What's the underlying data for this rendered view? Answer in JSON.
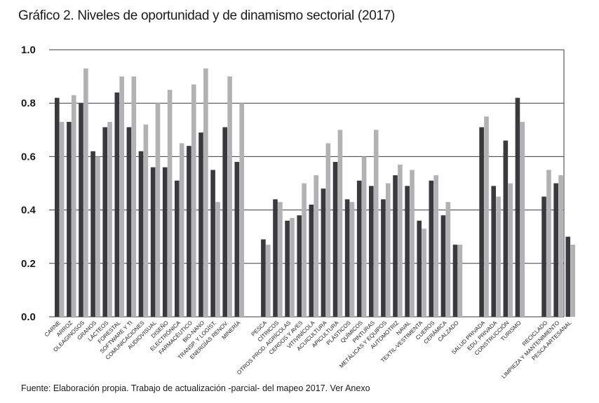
{
  "title": "Gráfico 2. Niveles de oportunidad y de dinamismo sectorial (2017)",
  "source": "Fuente: Elaboración propia. Trabajo de actualización -parcial- del mapeo 2017. Ver Anexo",
  "chart_data": {
    "type": "bar",
    "title": "Gráfico 2. Niveles de oportunidad y de dinamismo sectorial (2017)",
    "xlabel": "",
    "ylabel": "",
    "ylim": [
      0,
      1
    ],
    "yticks": [
      "0.0",
      "0.2",
      "0.4",
      "0.6",
      "0.8",
      "1.0"
    ],
    "grid": true,
    "legend": "none",
    "colors": {
      "series1": "#3a3a3c",
      "series2": "#b2b2b4",
      "grid": "#3a3a3a"
    },
    "groups": [
      {
        "categories": [
          "CARNE",
          "ARROZ",
          "OLEAGINOSOS",
          "GRANOS",
          "LÁCTEOS",
          "FORESTAL",
          "SOFTWARE Y TI",
          "COMUNICACIONES",
          "AUDIOVISUAL",
          "DISEÑO",
          "ELECTRÓNICA",
          "FARMACÉUTICO",
          "BIO-NANO",
          "TRANSP. Y LOGÍST.",
          "ENERGÍAS RENOV.",
          "MINERÍA"
        ],
        "series": [
          {
            "values": [
              0.82,
              0.73,
              0.8,
              0.62,
              0.71,
              0.84,
              0.71,
              0.62,
              0.56,
              0.56,
              0.51,
              0.64,
              0.69,
              0.55,
              0.71,
              0.58
            ]
          },
          {
            "values": [
              0.73,
              0.83,
              0.93,
              0.6,
              0.73,
              0.9,
              0.9,
              0.72,
              0.8,
              0.85,
              0.65,
              0.87,
              0.93,
              0.43,
              0.9,
              0.8
            ]
          }
        ]
      },
      {
        "categories": [
          "PESCA",
          "CÍTRICOS",
          "OTROS PROD. AGRÍCOLAS",
          "CERDOS Y AVES",
          "VITIVINÍCOLA",
          "ACUICULTURA",
          "APICULTURA",
          "PLÁSTICOS",
          "QUÍMICOS",
          "PINTURAS",
          "METÁLICAS Y EQUIPOS",
          "AUTOMOTRIZ",
          "NAVAL",
          "TEXTIL-VESTIMENTA",
          "CUEROS",
          "CERÁMICA",
          "CALZADO"
        ],
        "series": [
          {
            "values": [
              0.29,
              0.44,
              0.36,
              0.38,
              0.42,
              0.48,
              0.58,
              0.44,
              0.51,
              0.49,
              0.44,
              0.53,
              0.49,
              0.36,
              0.51,
              0.38,
              0.27
            ]
          },
          {
            "values": [
              0.27,
              0.43,
              0.37,
              0.5,
              0.53,
              0.65,
              0.7,
              0.43,
              0.6,
              0.7,
              0.5,
              0.57,
              0.55,
              0.33,
              0.53,
              0.43,
              0.27
            ]
          }
        ]
      },
      {
        "categories": [
          "SALUD PRIVADA",
          "EDU. PRIVADA",
          "CONSTRUCCIÓN",
          "TURISMO"
        ],
        "series": [
          {
            "values": [
              0.71,
              0.49,
              0.66,
              0.82
            ]
          },
          {
            "values": [
              0.75,
              0.45,
              0.5,
              0.73
            ]
          }
        ]
      },
      {
        "categories": [
          "RECICLADO",
          "LIMPIEZA Y MANTENIMIENTO",
          "PESCA ARTESANAL"
        ],
        "series": [
          {
            "values": [
              0.45,
              0.5,
              0.3
            ]
          },
          {
            "values": [
              0.55,
              0.53,
              0.27
            ]
          }
        ]
      }
    ]
  }
}
